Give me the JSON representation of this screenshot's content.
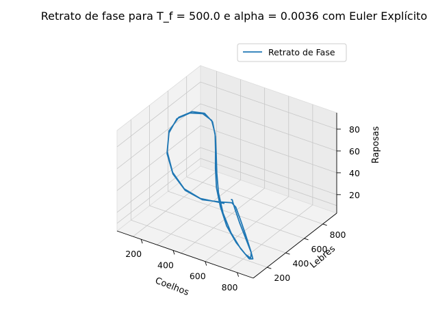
{
  "chart_data": {
    "type": "line",
    "projection": "3d",
    "title": "Retrato de fase para T_f = 500.0 e alpha = 0.0036 com Euler Explícito",
    "xlabel": "Coelhos",
    "ylabel": "Lebres",
    "zlabel": "Raposas",
    "xticks": [
      200,
      400,
      600,
      800
    ],
    "yticks": [
      200,
      400,
      600,
      800
    ],
    "zticks": [
      20,
      40,
      60,
      80
    ],
    "xlim": [
      50,
      900
    ],
    "ylim": [
      50,
      950
    ],
    "zlim": [
      3,
      95
    ],
    "grid": true,
    "legend": {
      "position": "top-right",
      "entries": [
        "Retrato de Fase"
      ]
    },
    "series": [
      {
        "name": "Retrato de Fase",
        "color": "#1f77b4",
        "points": [
          [
            500,
            500,
            25
          ],
          [
            520,
            480,
            27
          ],
          [
            560,
            420,
            30
          ],
          [
            620,
            340,
            32
          ],
          [
            700,
            250,
            30
          ],
          [
            780,
            180,
            24
          ],
          [
            830,
            150,
            16
          ],
          [
            820,
            160,
            10
          ],
          [
            760,
            210,
            7
          ],
          [
            650,
            300,
            6
          ],
          [
            520,
            420,
            7
          ],
          [
            400,
            560,
            9
          ],
          [
            300,
            690,
            13
          ],
          [
            230,
            800,
            20
          ],
          [
            190,
            870,
            30
          ],
          [
            170,
            900,
            42
          ],
          [
            160,
            880,
            55
          ],
          [
            150,
            800,
            66
          ],
          [
            140,
            680,
            74
          ],
          [
            140,
            540,
            78
          ],
          [
            160,
            420,
            74
          ],
          [
            200,
            330,
            63
          ],
          [
            260,
            290,
            50
          ],
          [
            330,
            300,
            38
          ],
          [
            410,
            350,
            30
          ],
          [
            480,
            420,
            27
          ],
          [
            540,
            440,
            28
          ],
          [
            600,
            380,
            31
          ],
          [
            680,
            290,
            30
          ],
          [
            760,
            210,
            25
          ],
          [
            820,
            160,
            17
          ],
          [
            840,
            150,
            11
          ],
          [
            800,
            180,
            7
          ],
          [
            700,
            260,
            6
          ],
          [
            570,
            380,
            6
          ],
          [
            440,
            520,
            8
          ],
          [
            330,
            660,
            12
          ],
          [
            250,
            780,
            18
          ],
          [
            200,
            860,
            28
          ],
          [
            175,
            895,
            40
          ],
          [
            160,
            890,
            53
          ],
          [
            150,
            820,
            65
          ],
          [
            142,
            700,
            74
          ],
          [
            140,
            560,
            78
          ],
          [
            155,
            430,
            75
          ],
          [
            195,
            340,
            64
          ],
          [
            255,
            295,
            51
          ],
          [
            325,
            300,
            39
          ],
          [
            400,
            345,
            31
          ],
          [
            470,
            410,
            27
          ],
          [
            500,
            430,
            26
          ]
        ]
      }
    ]
  }
}
